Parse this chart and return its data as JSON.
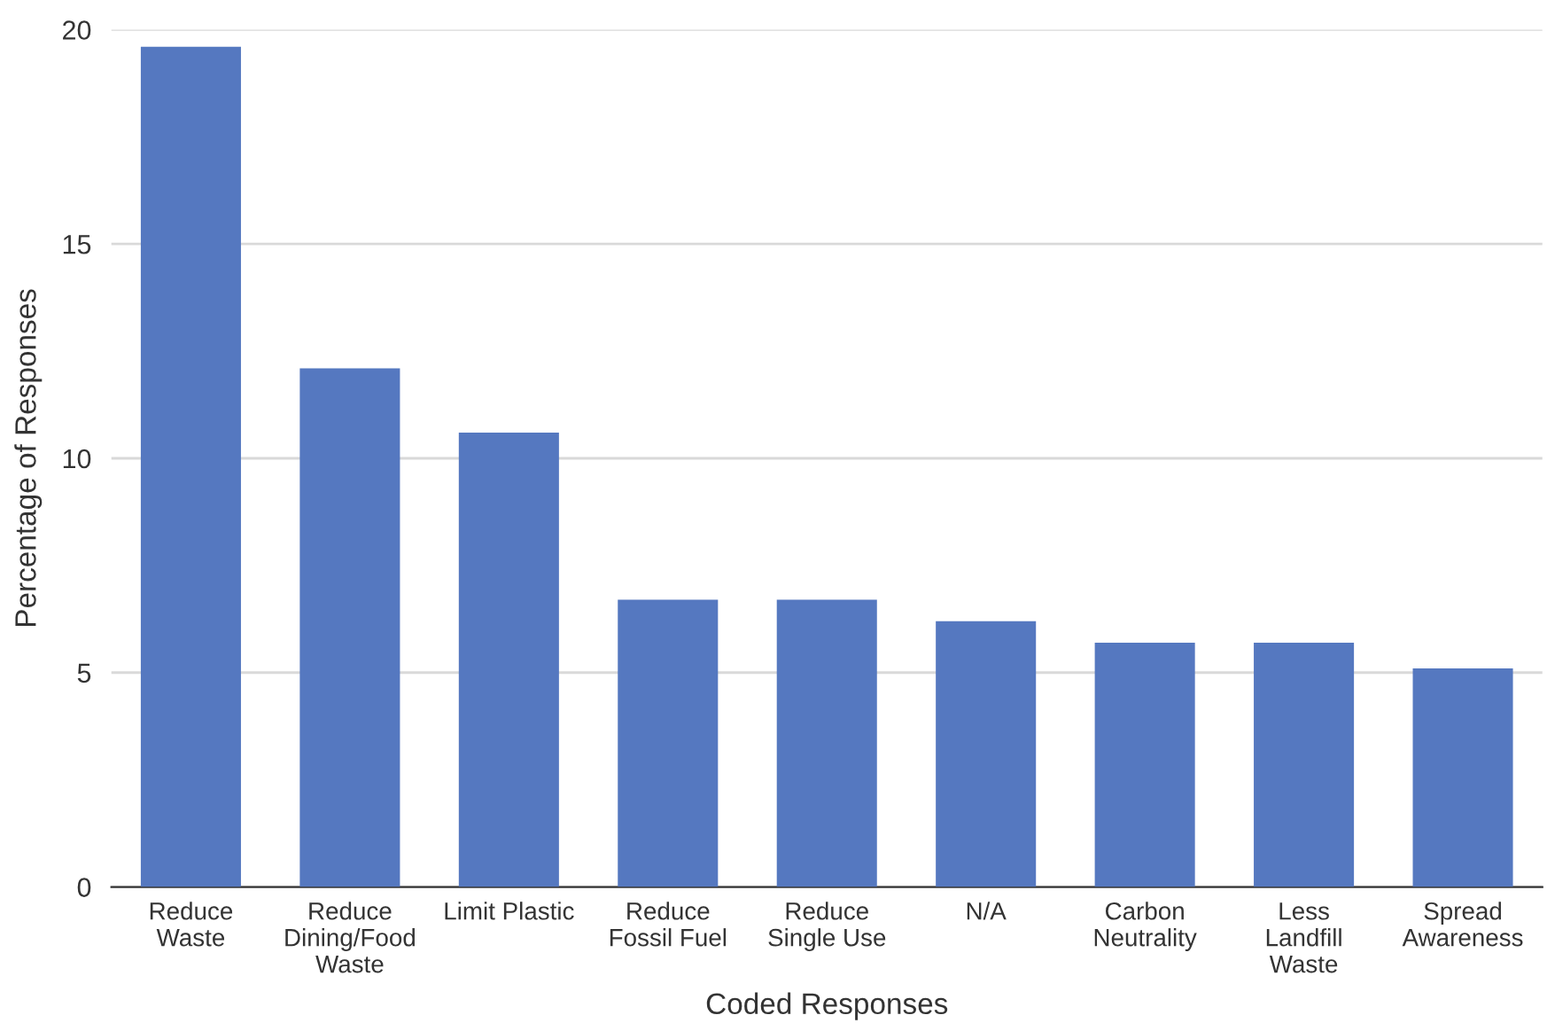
{
  "chart_data": {
    "type": "bar",
    "xlabel": "Coded Responses",
    "ylabel": "Percentage of Responses",
    "categories": [
      "Reduce\nWaste",
      "Reduce\nDining/Food\nWaste",
      "Limit Plastic",
      "Reduce\nFossil Fuel",
      "Reduce\nSingle Use",
      "N/A",
      "Carbon\nNeutrality",
      "Less\nLandfill\nWaste",
      "Spread\nAwareness"
    ],
    "values": [
      19.6,
      12.1,
      10.6,
      6.7,
      6.7,
      6.2,
      5.7,
      5.7,
      5.1
    ],
    "color": "#5578c0",
    "ylim": [
      0,
      20
    ],
    "yticks": [
      0,
      5,
      10,
      15,
      20
    ],
    "grid": "y",
    "legend": false
  }
}
